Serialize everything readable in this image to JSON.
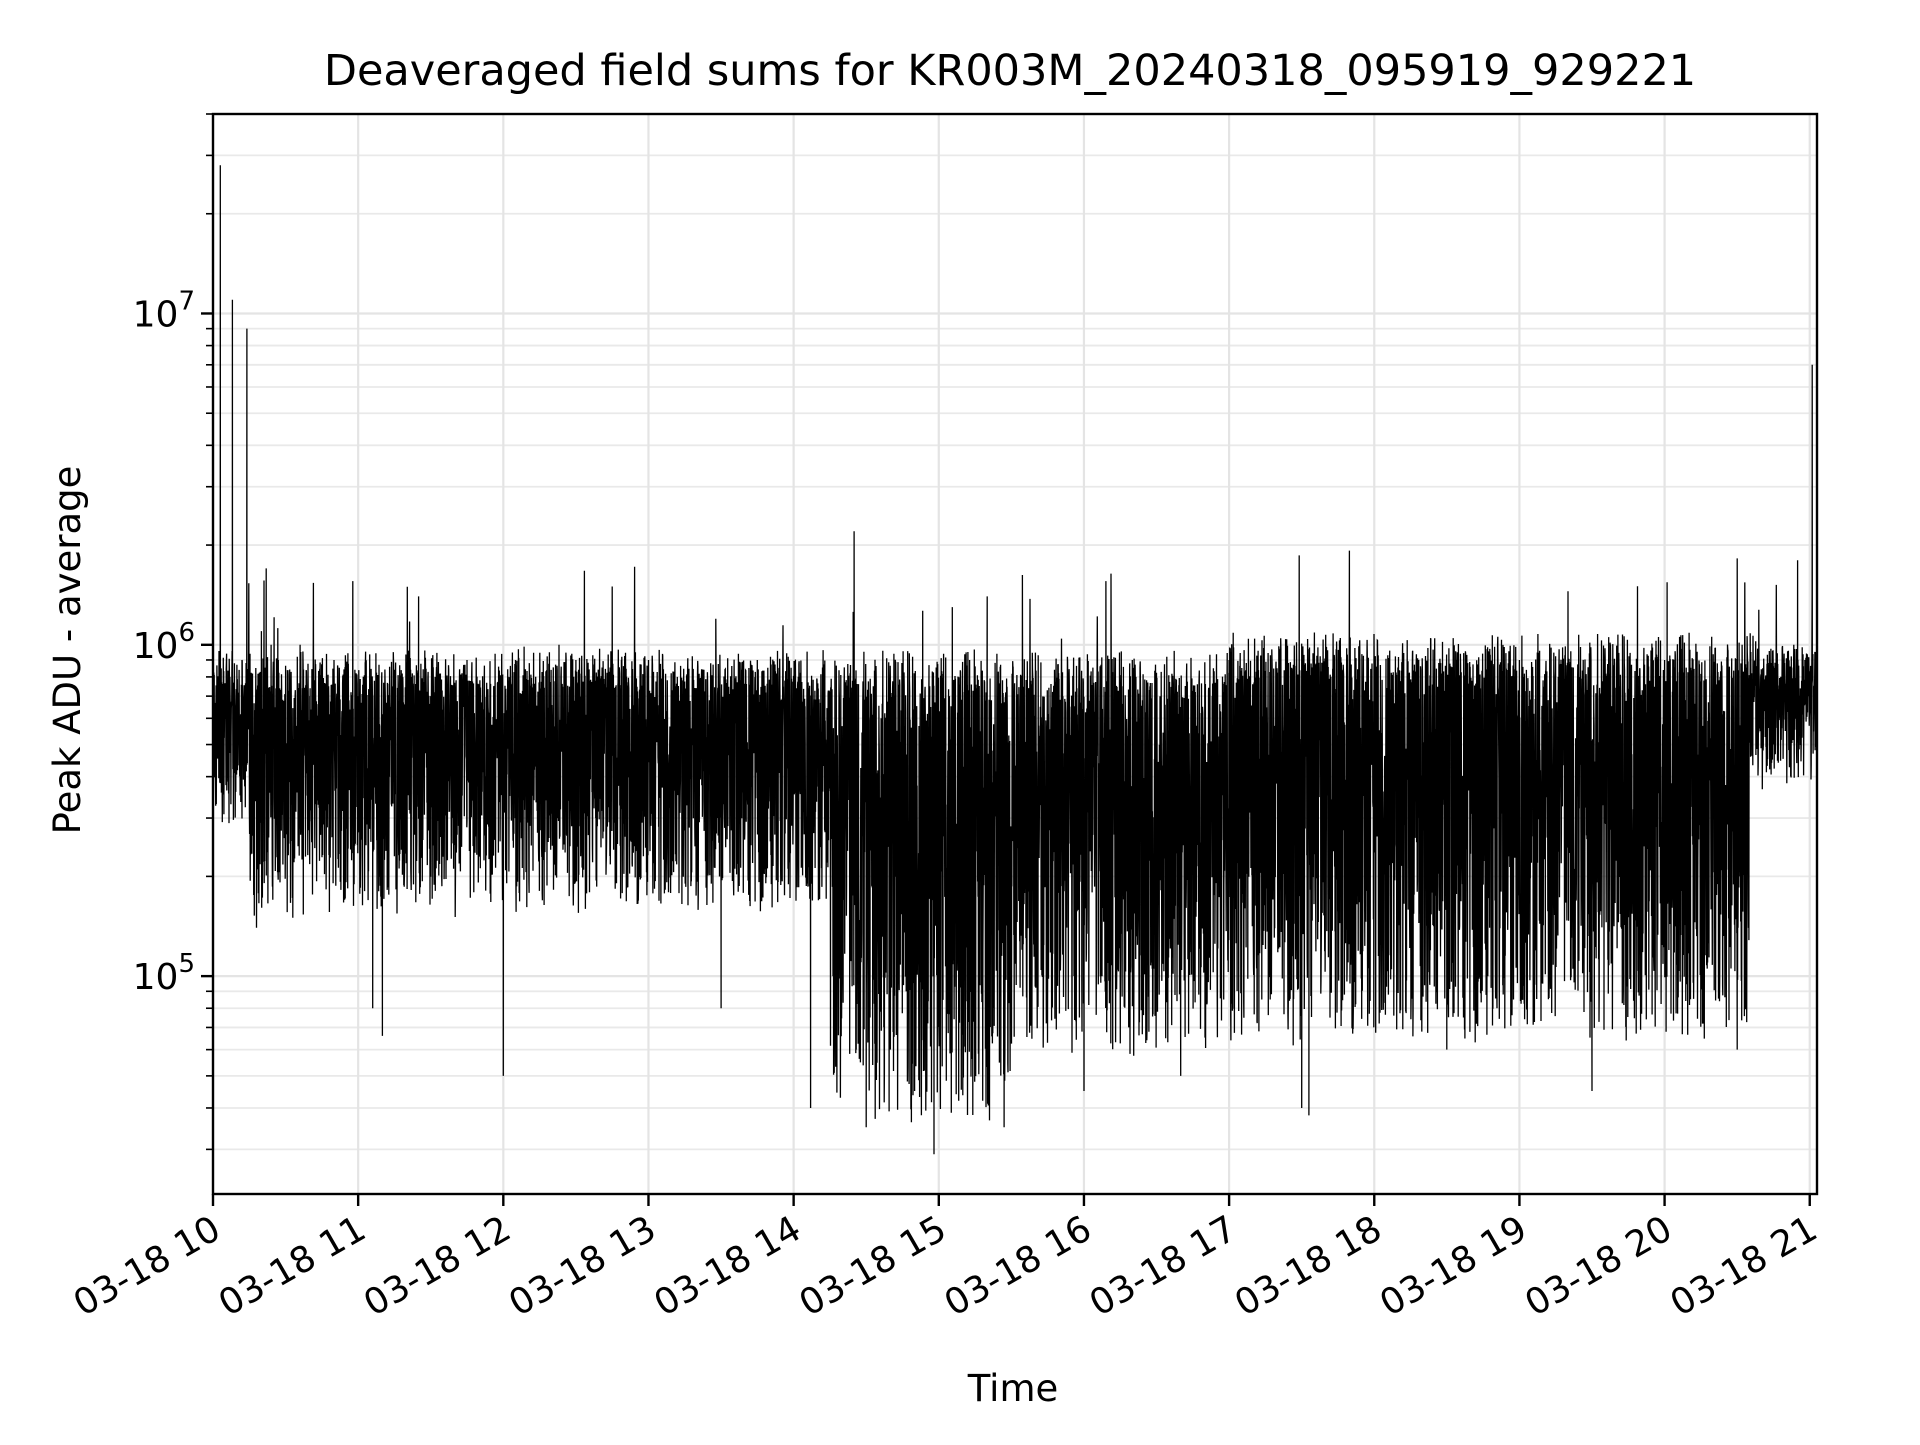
{
  "chart_data": {
    "type": "line",
    "title": "Deaveraged field sums for KR003M_20240318_095919_929221",
    "xlabel": "Time",
    "ylabel": "Peak ADU - average",
    "yscale": "log",
    "ylim": [
      22000,
      40000000
    ],
    "xlim": [
      "2024-03-18 10:00",
      "2024-03-18 21:03"
    ],
    "grid": true,
    "x_ticks": [
      {
        "value": "2024-03-18 10:00",
        "label": "03-18 10"
      },
      {
        "value": "2024-03-18 11:00",
        "label": "03-18 11"
      },
      {
        "value": "2024-03-18 12:00",
        "label": "03-18 12"
      },
      {
        "value": "2024-03-18 13:00",
        "label": "03-18 13"
      },
      {
        "value": "2024-03-18 14:00",
        "label": "03-18 14"
      },
      {
        "value": "2024-03-18 15:00",
        "label": "03-18 15"
      },
      {
        "value": "2024-03-18 16:00",
        "label": "03-18 16"
      },
      {
        "value": "2024-03-18 17:00",
        "label": "03-18 17"
      },
      {
        "value": "2024-03-18 18:00",
        "label": "03-18 18"
      },
      {
        "value": "2024-03-18 19:00",
        "label": "03-18 19"
      },
      {
        "value": "2024-03-18 20:00",
        "label": "03-18 20"
      },
      {
        "value": "2024-03-18 21:00",
        "label": "03-18 21"
      }
    ],
    "y_ticks": [
      {
        "value": 100000,
        "base": "10",
        "exp": "5"
      },
      {
        "value": 1000000,
        "base": "10",
        "exp": "6"
      },
      {
        "value": 10000000,
        "base": "10",
        "exp": "7"
      }
    ],
    "series": [
      {
        "color": "#000000",
        "x": [
          "2024-03-18 10:00",
          "2024-03-18 10:03",
          "2024-03-18 10:05",
          "2024-03-18 10:07",
          "2024-03-18 10:08",
          "2024-03-18 10:10",
          "2024-03-18 10:12",
          "2024-03-18 10:14",
          "2024-03-18 10:16",
          "2024-03-18 10:18",
          "2024-03-18 10:20",
          "2024-03-18 10:22",
          "2024-03-18 10:24",
          "2024-03-18 10:27",
          "2024-03-18 10:30",
          "2024-03-18 10:33",
          "2024-03-18 10:36",
          "2024-03-18 10:40",
          "2024-03-18 10:45",
          "2024-03-18 10:50",
          "2024-03-18 11:00",
          "2024-03-18 11:06",
          "2024-03-18 11:10",
          "2024-03-18 11:15",
          "2024-03-18 11:25",
          "2024-03-18 11:30",
          "2024-03-18 11:45",
          "2024-03-18 12:00",
          "2024-03-18 12:05",
          "2024-03-18 12:15",
          "2024-03-18 12:23",
          "2024-03-18 12:30",
          "2024-03-18 12:45",
          "2024-03-18 12:50",
          "2024-03-18 13:00",
          "2024-03-18 13:20",
          "2024-03-18 13:30",
          "2024-03-18 13:45",
          "2024-03-18 14:00",
          "2024-03-18 14:07",
          "2024-03-18 14:15",
          "2024-03-18 14:25",
          "2024-03-18 14:30",
          "2024-03-18 14:40",
          "2024-03-18 14:50",
          "2024-03-18 14:58",
          "2024-03-18 15:10",
          "2024-03-18 15:20",
          "2024-03-18 15:27",
          "2024-03-18 15:40",
          "2024-03-18 16:00",
          "2024-03-18 16:20",
          "2024-03-18 16:40",
          "2024-03-18 17:00",
          "2024-03-18 17:30",
          "2024-03-18 17:33",
          "2024-03-18 18:00",
          "2024-03-18 18:30",
          "2024-03-18 19:00",
          "2024-03-18 19:30",
          "2024-03-18 20:00",
          "2024-03-18 20:30",
          "2024-03-18 20:45",
          "2024-03-18 20:55",
          "2024-03-18 20:58",
          "2024-03-18 21:01",
          "2024-03-18 21:03"
        ],
        "y": [
          550000,
          28000000,
          700000,
          800000,
          11000000,
          750000,
          900000,
          9000000,
          650000,
          140000,
          1100000,
          1700000,
          1000000,
          900000,
          800000,
          150000,
          1000000,
          700000,
          750000,
          900000,
          700000,
          80000,
          66000,
          800000,
          1400000,
          700000,
          900000,
          50000,
          800000,
          700000,
          1000000,
          900000,
          1500000,
          300000,
          900000,
          700000,
          80000,
          900000,
          500000,
          40000,
          700000,
          2200000,
          35000,
          60000,
          45000,
          29000,
          50000,
          1400000,
          35000,
          600000,
          45000,
          900000,
          50000,
          900000,
          40000,
          38000,
          900000,
          60000,
          900000,
          45000,
          900000,
          60000,
          500000,
          1800000,
          900000,
          7000000,
          4500000
        ]
      }
    ]
  }
}
